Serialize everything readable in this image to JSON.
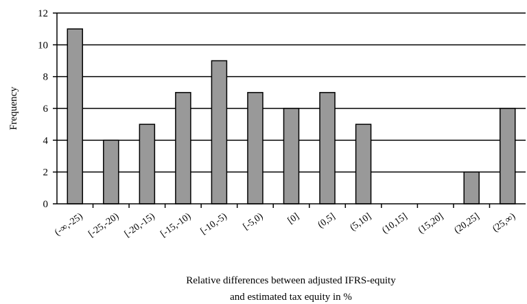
{
  "chart_data": {
    "type": "bar",
    "title": "",
    "xlabel_lines": [
      "Relative differences between adjusted IFRS-equity",
      "and estimated tax equity in %"
    ],
    "ylabel": "Frequency",
    "categories": [
      "(-∞,-25)",
      "[-25,-20)",
      "[-20,-15)",
      "[-15,-10)",
      "[-10,-5)",
      "[-5,0)",
      "[0]",
      "(0,5]",
      "(5,10]",
      "(10,15]",
      "(15,20]",
      "(20,25]",
      "(25,∞)"
    ],
    "values": [
      11,
      4,
      5,
      7,
      9,
      7,
      6,
      7,
      5,
      0,
      0,
      2,
      6
    ],
    "ylim": [
      0,
      12
    ],
    "yticks": [
      0,
      2,
      4,
      6,
      8,
      10,
      12
    ],
    "grid": "horizontal",
    "legend": "none",
    "colors": {
      "bar_fill": "#999999",
      "bar_stroke": "#000000",
      "grid": "#000000"
    }
  }
}
